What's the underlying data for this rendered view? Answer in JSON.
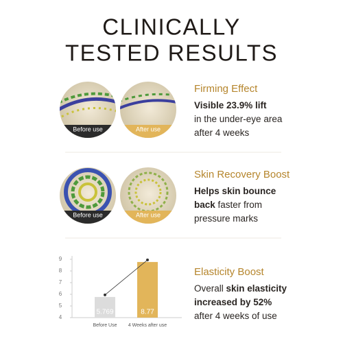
{
  "title": [
    "CLINICALLY",
    "TESTED RESULTS"
  ],
  "sections": [
    {
      "heading": "Firming Effect",
      "before_label": "Before use",
      "after_label": "After use",
      "lines": [
        [
          {
            "text": "Visible 23.9% lift",
            "bold": true
          }
        ],
        [
          {
            "text": "in the under-eye area",
            "bold": false
          }
        ],
        [
          {
            "text": "after 4 weeks",
            "bold": false
          }
        ]
      ]
    },
    {
      "heading": "Skin Recovery Boost",
      "before_label": "Before use",
      "after_label": "After use",
      "lines": [
        [
          {
            "text": "Helps skin bounce",
            "bold": true
          }
        ],
        [
          {
            "text": "back",
            "bold": true
          },
          {
            "text": " faster from",
            "bold": false
          }
        ],
        [
          {
            "text": "pressure marks",
            "bold": false
          }
        ]
      ]
    },
    {
      "heading": "Elasticity Boost",
      "lines": [
        [
          {
            "text": "Overall ",
            "bold": false
          },
          {
            "text": "skin elasticity",
            "bold": true
          }
        ],
        [
          {
            "text": "increased by 52%",
            "bold": true
          }
        ],
        [
          {
            "text": "after 4 weeks of use",
            "bold": false
          }
        ]
      ],
      "chart": {
        "type": "bar",
        "categories": [
          "Before Use",
          "4 Weeks after use"
        ],
        "values": [
          5.769,
          8.77
        ],
        "colors": [
          "#dcdcdc",
          "#e2b55a"
        ],
        "ylim": [
          4,
          9
        ],
        "yticks": [
          4,
          5,
          6,
          7,
          8,
          9
        ],
        "trend_line": true
      }
    }
  ]
}
